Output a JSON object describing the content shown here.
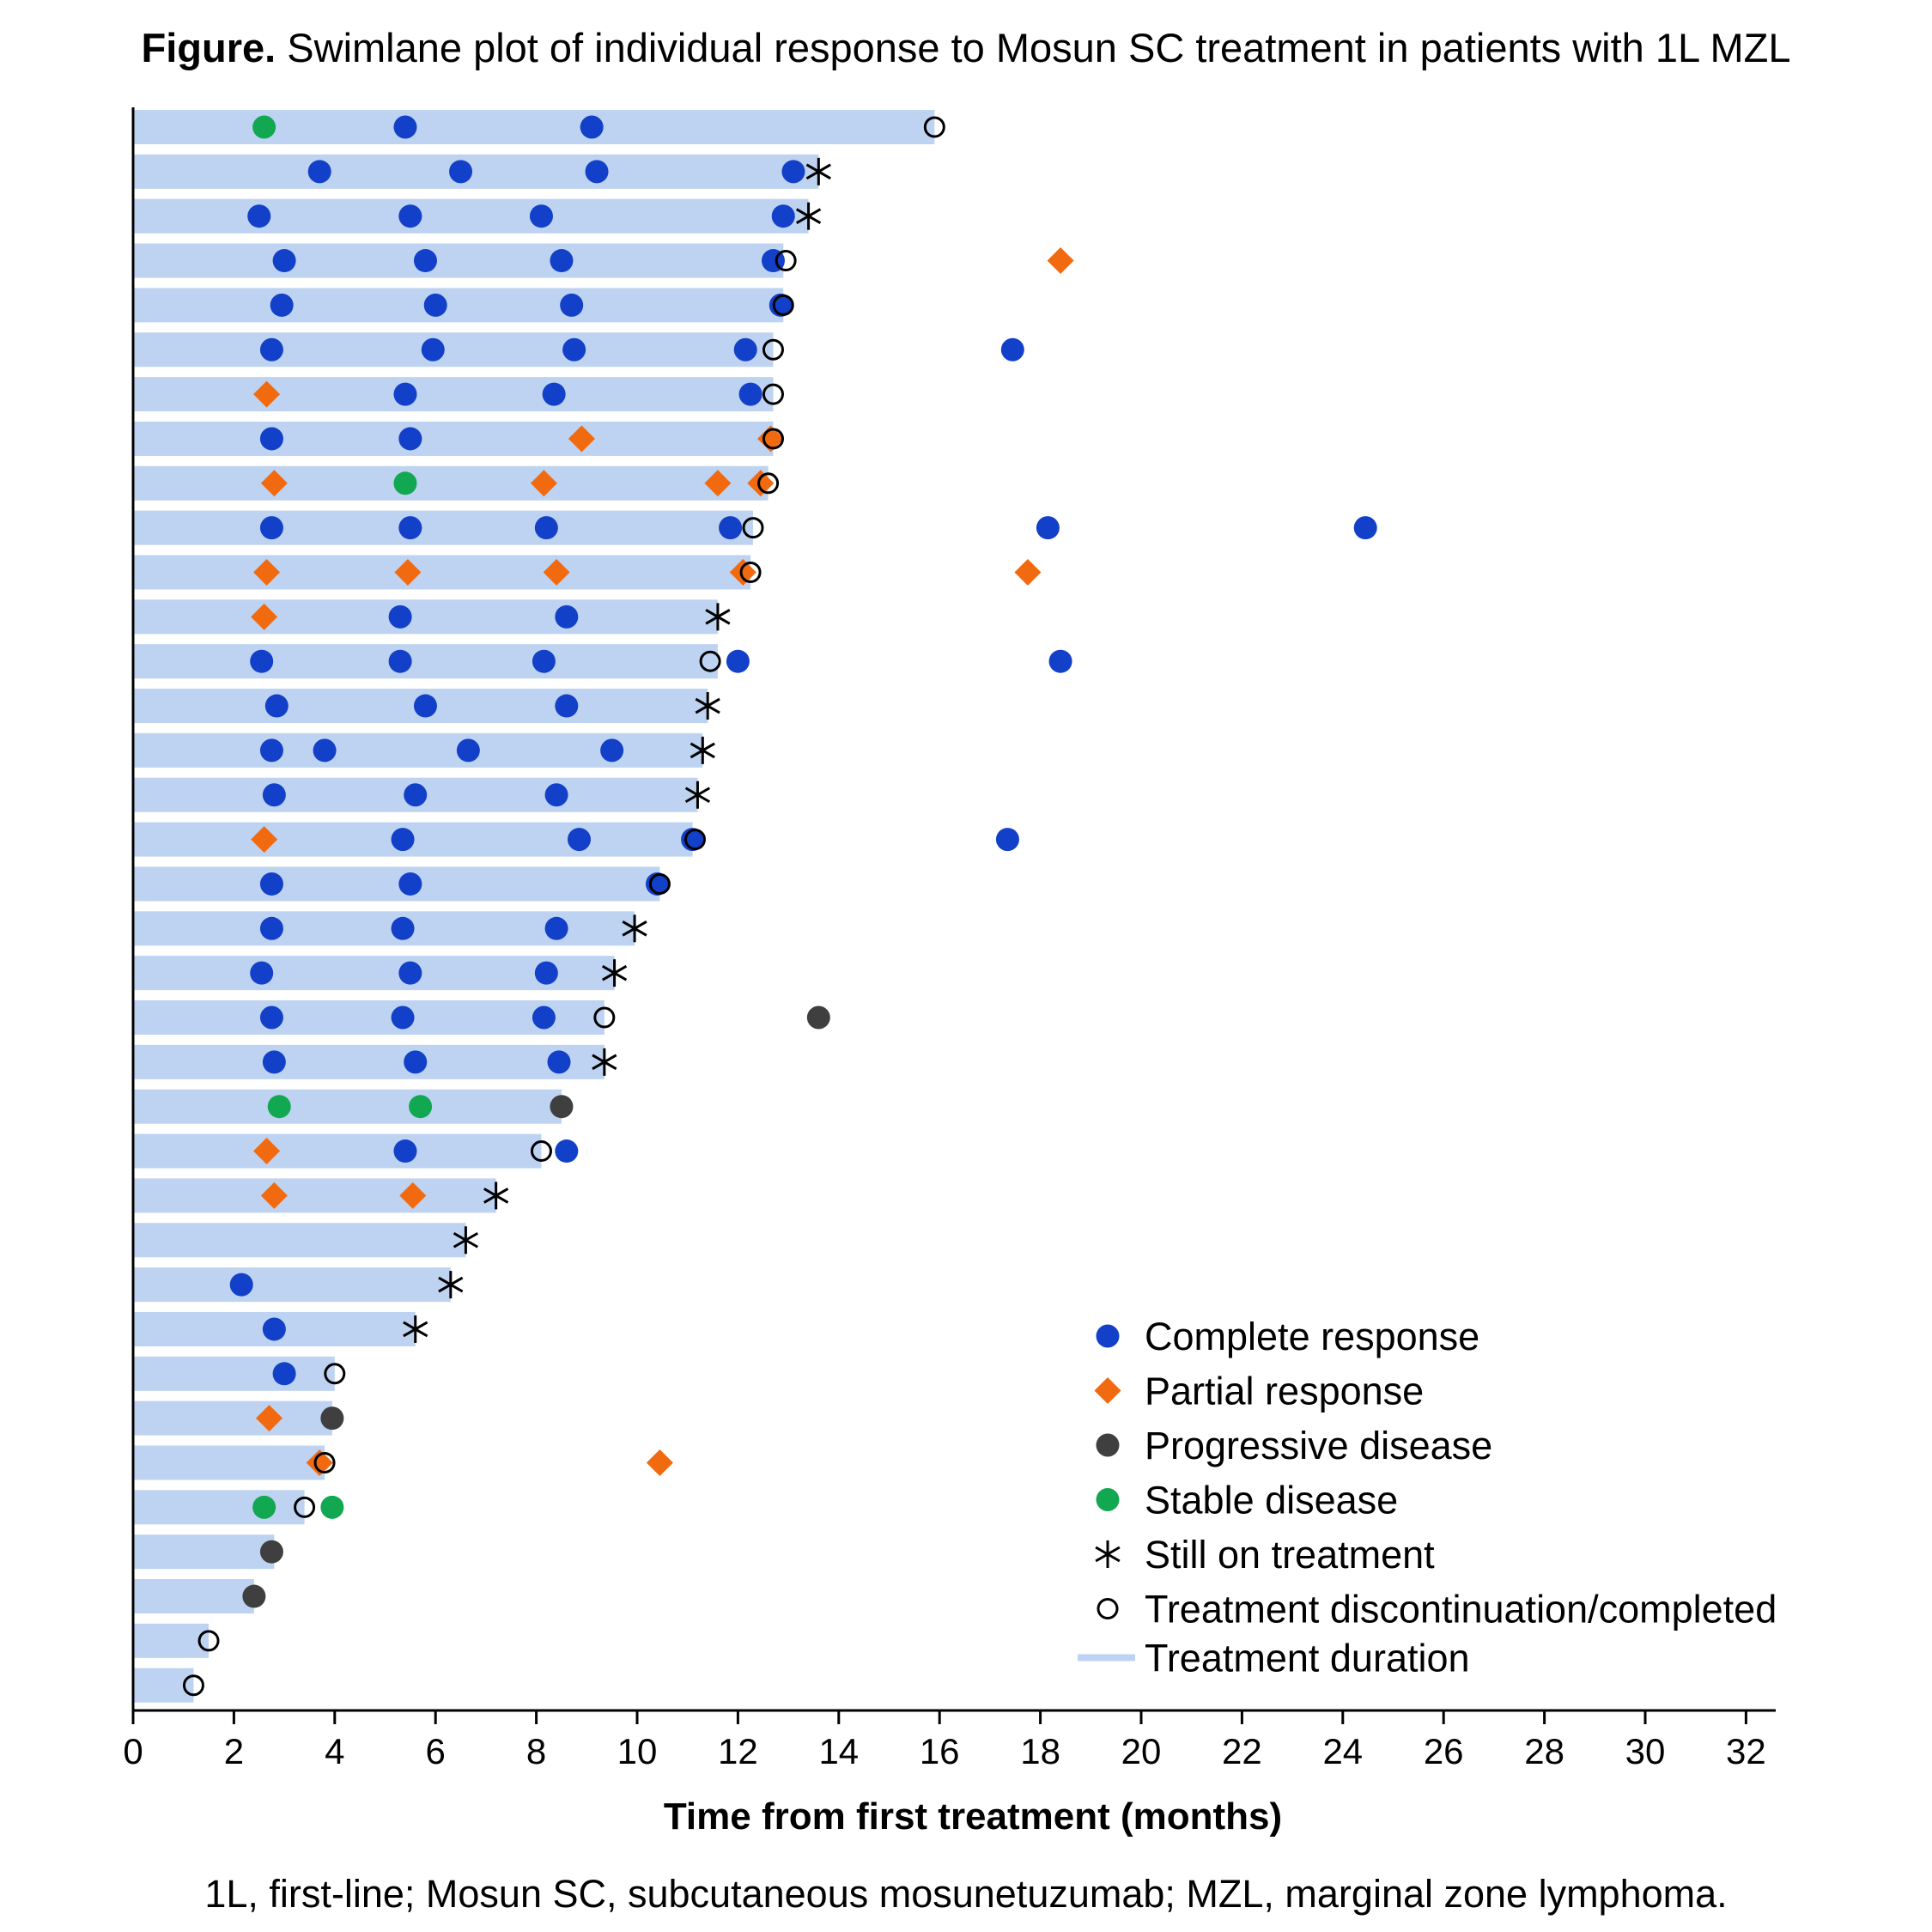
{
  "figure": {
    "title_prefix": "Figure.",
    "title_text": "Swimlane plot of individual response to Mosun SC treatment in patients with 1L MZL",
    "footnote": "1L, first-line; Mosun SC, subcutaneous mosunetuzumab; MZL, marginal zone lymphoma."
  },
  "colors": {
    "complete_response": "#1240c8",
    "partial_response": "#f26a0f",
    "progressive_disease": "#3f3f3f",
    "stable_disease": "#11a851",
    "still_on_treatment": "#000000",
    "discontinued": "#000000",
    "treatment_bar": "#bdd3f1",
    "axis": "#000000"
  },
  "chart_data": {
    "type": "swimlane",
    "title": "Swimlane plot of individual response to Mosun SC treatment in patients with 1L MZL",
    "xlabel": "Time from first treatment (months)",
    "ylabel": "",
    "xlim": [
      0,
      32.6
    ],
    "xticks": [
      0,
      2,
      4,
      6,
      8,
      10,
      12,
      14,
      16,
      18,
      20,
      22,
      24,
      26,
      28,
      30,
      32
    ],
    "legend": {
      "position": "bottom-right",
      "items": [
        {
          "key": "CR",
          "label": "Complete response"
        },
        {
          "key": "PR",
          "label": "Partial response"
        },
        {
          "key": "PD",
          "label": "Progressive disease"
        },
        {
          "key": "SD",
          "label": "Stable disease"
        },
        {
          "key": "ON",
          "label": "Still on treatment"
        },
        {
          "key": "DC",
          "label": "Treatment discontinuation/completed"
        },
        {
          "key": "BAR",
          "label": "Treatment duration"
        }
      ]
    },
    "patients": [
      {
        "duration": 15.9,
        "events": [
          {
            "t": 2.6,
            "type": "SD"
          },
          {
            "t": 5.4,
            "type": "CR"
          },
          {
            "t": 9.1,
            "type": "CR"
          },
          {
            "t": 15.9,
            "type": "DC"
          }
        ]
      },
      {
        "duration": 13.6,
        "events": [
          {
            "t": 3.7,
            "type": "CR"
          },
          {
            "t": 6.5,
            "type": "CR"
          },
          {
            "t": 9.2,
            "type": "CR"
          },
          {
            "t": 13.1,
            "type": "CR"
          },
          {
            "t": 13.6,
            "type": "ON"
          }
        ]
      },
      {
        "duration": 13.4,
        "events": [
          {
            "t": 2.5,
            "type": "CR"
          },
          {
            "t": 5.5,
            "type": "CR"
          },
          {
            "t": 8.1,
            "type": "CR"
          },
          {
            "t": 12.9,
            "type": "CR"
          },
          {
            "t": 13.4,
            "type": "ON"
          }
        ]
      },
      {
        "duration": 12.9,
        "events": [
          {
            "t": 3.0,
            "type": "CR"
          },
          {
            "t": 5.8,
            "type": "CR"
          },
          {
            "t": 8.5,
            "type": "CR"
          },
          {
            "t": 12.7,
            "type": "CR"
          },
          {
            "t": 12.95,
            "type": "DC"
          },
          {
            "t": 18.4,
            "type": "PR"
          }
        ]
      },
      {
        "duration": 12.9,
        "events": [
          {
            "t": 2.95,
            "type": "CR"
          },
          {
            "t": 6.0,
            "type": "CR"
          },
          {
            "t": 8.7,
            "type": "CR"
          },
          {
            "t": 12.85,
            "type": "CR"
          },
          {
            "t": 12.9,
            "type": "DC"
          }
        ]
      },
      {
        "duration": 12.7,
        "events": [
          {
            "t": 2.75,
            "type": "CR"
          },
          {
            "t": 5.95,
            "type": "CR"
          },
          {
            "t": 8.75,
            "type": "CR"
          },
          {
            "t": 12.15,
            "type": "CR"
          },
          {
            "t": 12.7,
            "type": "DC"
          },
          {
            "t": 17.45,
            "type": "CR"
          }
        ]
      },
      {
        "duration": 12.7,
        "events": [
          {
            "t": 2.65,
            "type": "PR"
          },
          {
            "t": 5.4,
            "type": "CR"
          },
          {
            "t": 8.35,
            "type": "CR"
          },
          {
            "t": 12.25,
            "type": "CR"
          },
          {
            "t": 12.7,
            "type": "DC"
          }
        ]
      },
      {
        "duration": 12.7,
        "events": [
          {
            "t": 2.75,
            "type": "CR"
          },
          {
            "t": 5.5,
            "type": "CR"
          },
          {
            "t": 8.9,
            "type": "PR"
          },
          {
            "t": 12.65,
            "type": "PR"
          },
          {
            "t": 12.7,
            "type": "DC"
          }
        ]
      },
      {
        "duration": 12.6,
        "events": [
          {
            "t": 2.8,
            "type": "PR"
          },
          {
            "t": 5.4,
            "type": "SD"
          },
          {
            "t": 8.15,
            "type": "PR"
          },
          {
            "t": 11.6,
            "type": "PR"
          },
          {
            "t": 12.45,
            "type": "PR"
          },
          {
            "t": 12.6,
            "type": "DC"
          }
        ]
      },
      {
        "duration": 12.3,
        "events": [
          {
            "t": 2.75,
            "type": "CR"
          },
          {
            "t": 5.5,
            "type": "CR"
          },
          {
            "t": 8.2,
            "type": "CR"
          },
          {
            "t": 11.85,
            "type": "CR"
          },
          {
            "t": 12.3,
            "type": "DC"
          },
          {
            "t": 18.15,
            "type": "CR"
          },
          {
            "t": 24.45,
            "type": "CR"
          }
        ]
      },
      {
        "duration": 12.25,
        "events": [
          {
            "t": 2.65,
            "type": "PR"
          },
          {
            "t": 5.45,
            "type": "PR"
          },
          {
            "t": 8.4,
            "type": "PR"
          },
          {
            "t": 12.1,
            "type": "PR"
          },
          {
            "t": 12.25,
            "type": "DC"
          },
          {
            "t": 17.75,
            "type": "PR"
          }
        ]
      },
      {
        "duration": 11.6,
        "events": [
          {
            "t": 2.6,
            "type": "PR"
          },
          {
            "t": 5.3,
            "type": "CR"
          },
          {
            "t": 8.6,
            "type": "CR"
          },
          {
            "t": 11.6,
            "type": "ON"
          }
        ]
      },
      {
        "duration": 11.6,
        "events": [
          {
            "t": 2.55,
            "type": "CR"
          },
          {
            "t": 5.3,
            "type": "CR"
          },
          {
            "t": 8.15,
            "type": "CR"
          },
          {
            "t": 11.45,
            "type": "DC"
          },
          {
            "t": 12.0,
            "type": "CR"
          },
          {
            "t": 18.4,
            "type": "CR"
          }
        ]
      },
      {
        "duration": 11.4,
        "events": [
          {
            "t": 2.85,
            "type": "CR"
          },
          {
            "t": 5.8,
            "type": "CR"
          },
          {
            "t": 8.6,
            "type": "CR"
          },
          {
            "t": 11.4,
            "type": "ON"
          }
        ]
      },
      {
        "duration": 11.3,
        "events": [
          {
            "t": 2.75,
            "type": "CR"
          },
          {
            "t": 3.8,
            "type": "CR"
          },
          {
            "t": 6.65,
            "type": "CR"
          },
          {
            "t": 9.5,
            "type": "CR"
          },
          {
            "t": 11.3,
            "type": "ON"
          }
        ]
      },
      {
        "duration": 11.2,
        "events": [
          {
            "t": 2.8,
            "type": "CR"
          },
          {
            "t": 5.6,
            "type": "CR"
          },
          {
            "t": 8.4,
            "type": "CR"
          },
          {
            "t": 11.2,
            "type": "ON"
          }
        ]
      },
      {
        "duration": 11.1,
        "events": [
          {
            "t": 2.6,
            "type": "PR"
          },
          {
            "t": 5.35,
            "type": "CR"
          },
          {
            "t": 8.85,
            "type": "CR"
          },
          {
            "t": 11.1,
            "type": "CR"
          },
          {
            "t": 11.15,
            "type": "DC"
          },
          {
            "t": 17.35,
            "type": "CR"
          }
        ]
      },
      {
        "duration": 10.45,
        "events": [
          {
            "t": 2.75,
            "type": "CR"
          },
          {
            "t": 5.5,
            "type": "CR"
          },
          {
            "t": 10.4,
            "type": "CR"
          },
          {
            "t": 10.45,
            "type": "DC"
          }
        ]
      },
      {
        "duration": 9.95,
        "events": [
          {
            "t": 2.75,
            "type": "CR"
          },
          {
            "t": 5.35,
            "type": "CR"
          },
          {
            "t": 8.4,
            "type": "CR"
          },
          {
            "t": 9.95,
            "type": "ON"
          }
        ]
      },
      {
        "duration": 9.55,
        "events": [
          {
            "t": 2.55,
            "type": "CR"
          },
          {
            "t": 5.5,
            "type": "CR"
          },
          {
            "t": 8.2,
            "type": "CR"
          },
          {
            "t": 9.55,
            "type": "ON"
          }
        ]
      },
      {
        "duration": 9.35,
        "events": [
          {
            "t": 2.75,
            "type": "CR"
          },
          {
            "t": 5.35,
            "type": "CR"
          },
          {
            "t": 8.15,
            "type": "CR"
          },
          {
            "t": 9.35,
            "type": "DC"
          },
          {
            "t": 13.6,
            "type": "PD"
          }
        ]
      },
      {
        "duration": 9.35,
        "events": [
          {
            "t": 2.8,
            "type": "CR"
          },
          {
            "t": 5.6,
            "type": "CR"
          },
          {
            "t": 8.45,
            "type": "CR"
          },
          {
            "t": 9.35,
            "type": "ON"
          }
        ]
      },
      {
        "duration": 8.5,
        "events": [
          {
            "t": 2.9,
            "type": "SD"
          },
          {
            "t": 5.7,
            "type": "SD"
          },
          {
            "t": 8.5,
            "type": "PD"
          }
        ]
      },
      {
        "duration": 8.1,
        "events": [
          {
            "t": 2.65,
            "type": "PR"
          },
          {
            "t": 5.4,
            "type": "CR"
          },
          {
            "t": 8.1,
            "type": "DC"
          },
          {
            "t": 8.6,
            "type": "CR"
          }
        ]
      },
      {
        "duration": 7.2,
        "events": [
          {
            "t": 2.8,
            "type": "PR"
          },
          {
            "t": 5.55,
            "type": "PR"
          },
          {
            "t": 7.2,
            "type": "ON"
          }
        ]
      },
      {
        "duration": 6.6,
        "events": [
          {
            "t": 6.6,
            "type": "ON"
          }
        ]
      },
      {
        "duration": 6.3,
        "events": [
          {
            "t": 2.15,
            "type": "CR"
          },
          {
            "t": 6.3,
            "type": "ON"
          }
        ]
      },
      {
        "duration": 5.6,
        "events": [
          {
            "t": 2.8,
            "type": "CR"
          },
          {
            "t": 5.6,
            "type": "ON"
          }
        ]
      },
      {
        "duration": 4.0,
        "events": [
          {
            "t": 3.0,
            "type": "CR"
          },
          {
            "t": 4.0,
            "type": "DC"
          }
        ]
      },
      {
        "duration": 3.95,
        "events": [
          {
            "t": 2.7,
            "type": "PR"
          },
          {
            "t": 3.95,
            "type": "PD"
          }
        ]
      },
      {
        "duration": 3.8,
        "events": [
          {
            "t": 3.7,
            "type": "PR"
          },
          {
            "t": 3.8,
            "type": "DC"
          },
          {
            "t": 10.45,
            "type": "PR"
          }
        ]
      },
      {
        "duration": 3.4,
        "events": [
          {
            "t": 2.6,
            "type": "SD"
          },
          {
            "t": 3.4,
            "type": "DC"
          },
          {
            "t": 3.95,
            "type": "SD"
          }
        ]
      },
      {
        "duration": 2.8,
        "events": [
          {
            "t": 2.75,
            "type": "PD"
          }
        ]
      },
      {
        "duration": 2.4,
        "events": [
          {
            "t": 2.4,
            "type": "PD"
          }
        ]
      },
      {
        "duration": 1.5,
        "events": [
          {
            "t": 1.5,
            "type": "DC"
          }
        ]
      },
      {
        "duration": 1.2,
        "events": [
          {
            "t": 1.2,
            "type": "DC"
          }
        ]
      }
    ]
  }
}
